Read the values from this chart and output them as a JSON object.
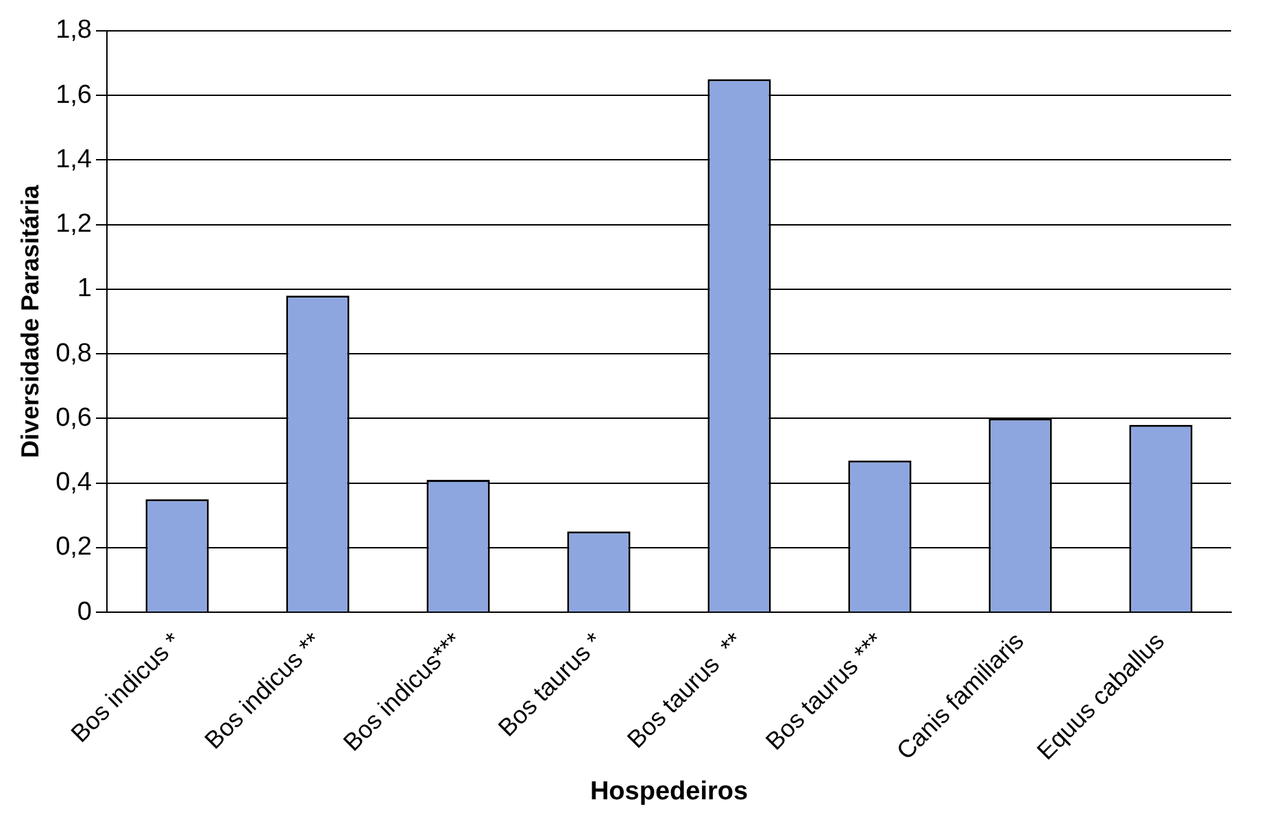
{
  "chart_data": {
    "type": "bar",
    "xlabel": "Hospedeiros",
    "ylabel": "Diversidade Parasitária",
    "categories": [
      "Bos indicus *",
      "Bos indicus **",
      "Bos indicus***",
      "Bos taurus *",
      "Bos taurus  **",
      "Bos taurus ***",
      "Canis familiaris",
      "Equus caballus"
    ],
    "values": [
      0.35,
      0.98,
      0.41,
      0.25,
      1.65,
      0.47,
      0.6,
      0.58
    ],
    "color": "#8ea6e0",
    "ylim": [
      0,
      1.8
    ],
    "yticks": [
      0,
      {
        "value": 0.2,
        "label": "0,2"
      },
      {
        "value": 0.4,
        "label": "0,4"
      },
      {
        "value": 0.6,
        "label": "0,6"
      },
      {
        "value": 0.8,
        "label": "0,8"
      },
      1,
      {
        "value": 1.2,
        "label": "1,2"
      },
      {
        "value": 1.4,
        "label": "1,4"
      },
      {
        "value": 1.6,
        "label": "1,6"
      },
      {
        "value": 1.8,
        "label": "1,8"
      }
    ],
    "grid": "y"
  }
}
